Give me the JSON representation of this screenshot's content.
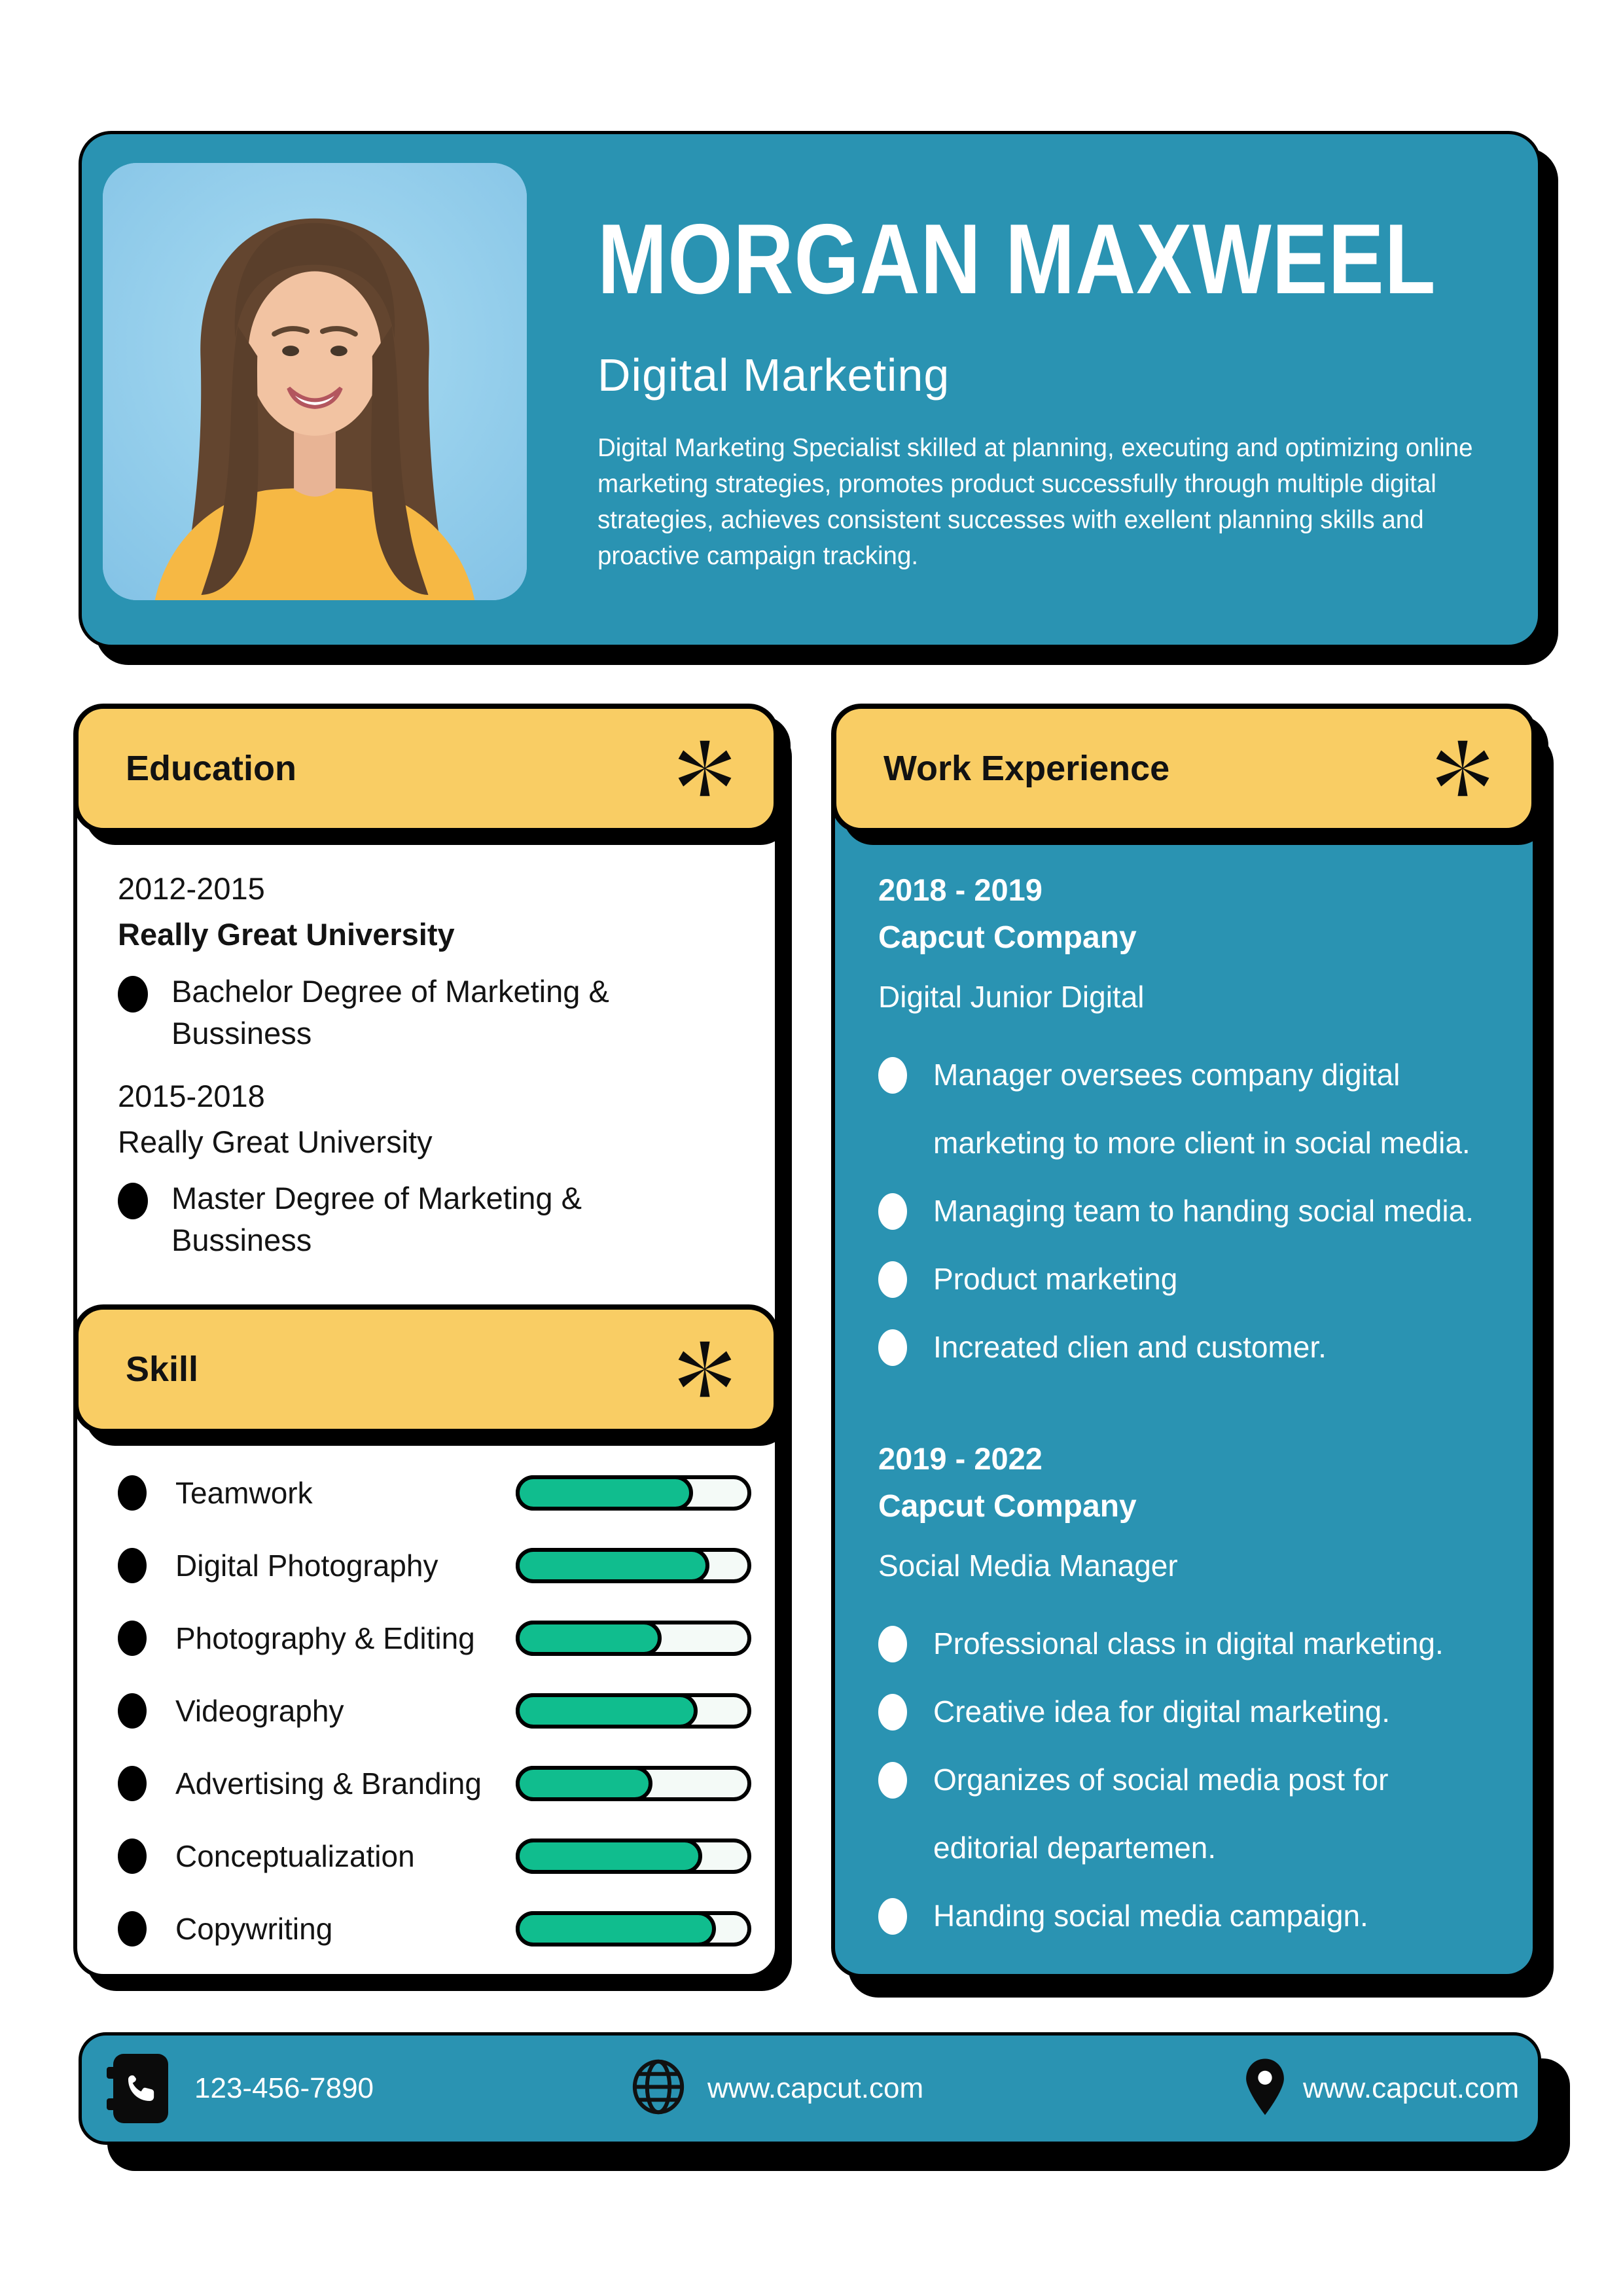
{
  "colors": {
    "teal": "#2a93b2",
    "yellow": "#f9cd64",
    "green": "#10bd8e",
    "black": "#0b0b0b",
    "white": "#ffffff",
    "photo_background": "#8fc8e9"
  },
  "icons": {
    "section_badge": "asterisk-icon",
    "phone": "phone-icon",
    "website": "globe-icon",
    "location": "location-pin-icon"
  },
  "header": {
    "name": "MORGAN MAXWEEL",
    "role": "Digital Marketing",
    "summary": "Digital Marketing Specialist skilled at planning, executing and optimizing online marketing strategies, promotes product successfully through multiple digital strategies, achieves consistent successes with exellent planning skills and proactive campaign tracking."
  },
  "education": {
    "title": "Education",
    "entries": [
      {
        "years": "2012-2015",
        "school": "Really Great University",
        "degree": "Bachelor Degree of Marketing & Bussiness"
      },
      {
        "years": "2015-2018",
        "school": "Really Great University",
        "degree": "Master Degree of Marketing & Bussiness"
      }
    ]
  },
  "skills": {
    "title": "Skill",
    "items": [
      {
        "label": "Teamwork",
        "percent": 78
      },
      {
        "label": "Digital Photography",
        "percent": 85
      },
      {
        "label": "Photography & Editing",
        "percent": 64
      },
      {
        "label": "Videography",
        "percent": 80
      },
      {
        "label": "Advertising & Branding",
        "percent": 60
      },
      {
        "label": "Conceptualization",
        "percent": 82
      },
      {
        "label": "Copywriting",
        "percent": 88
      }
    ]
  },
  "work": {
    "title": "Work Experience",
    "entries": [
      {
        "years": "2018 - 2019",
        "company": "Capcut Company",
        "role": "Digital Junior Digital",
        "bullets": [
          "Manager oversees company digital marketing to more client in social media.",
          "Managing team to handing social media.",
          "Product marketing",
          "Increated clien and customer."
        ]
      },
      {
        "years": "2019 - 2022",
        "company": "Capcut Company",
        "role": "Social Media Manager",
        "bullets": [
          "Professional class in digital marketing.",
          "Creative idea for digital marketing.",
          "Organizes of social media post for editorial departemen.",
          "Handing social media campaign."
        ]
      }
    ]
  },
  "footer": {
    "phone": "123-456-7890",
    "website": "www.capcut.com",
    "location": "www.capcut.com"
  }
}
